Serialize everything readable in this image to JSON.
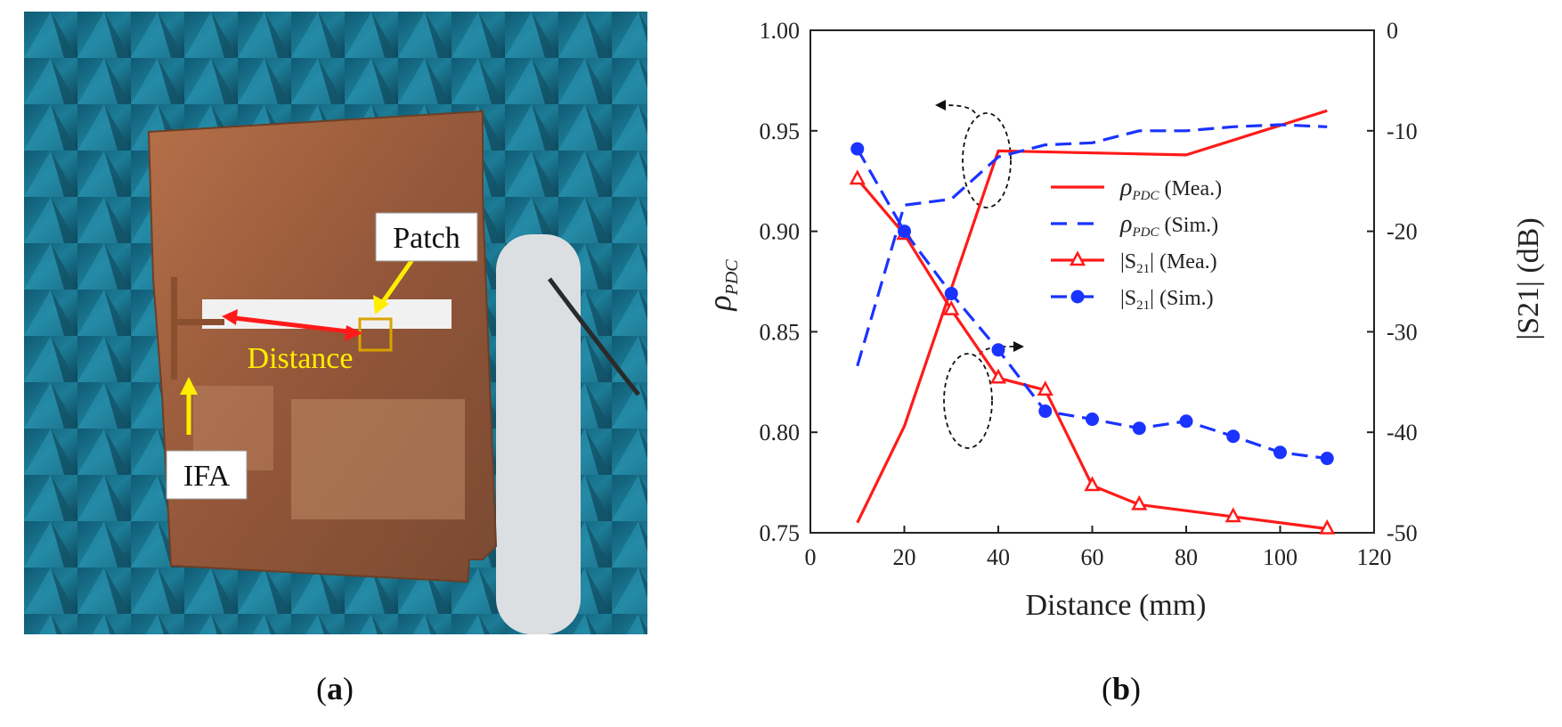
{
  "panel_a": {
    "labels": {
      "patch": "Patch",
      "distance": "Distance",
      "ifa": "IFA"
    },
    "caption_open": "(",
    "caption_letter": "a",
    "caption_close": ")"
  },
  "panel_b": {
    "caption_open": "(",
    "caption_letter": "b",
    "caption_close": ")"
  },
  "colors": {
    "red": "#ff1a1a",
    "blue": "#1a33ff",
    "axis": "#222222",
    "chamber": "#1d6f86",
    "copper": "#a4653f"
  },
  "chart_data": {
    "type": "line",
    "title": "",
    "xlabel": "Distance (mm)",
    "ylabel_left": "ρPDC",
    "ylabel_left_main": "ρ",
    "ylabel_left_sub": "PDC",
    "ylabel_right": "|S21| (dB)",
    "xlim": [
      0,
      120
    ],
    "ylim_left": [
      0.75,
      1.0
    ],
    "ylim_right": [
      -50,
      0
    ],
    "xticks": [
      "0",
      "20",
      "40",
      "60",
      "80",
      "100",
      "120"
    ],
    "yticks_left": [
      "0.75",
      "0.80",
      "0.85",
      "0.90",
      "0.95",
      "1.00"
    ],
    "yticks_right": [
      "-50",
      "-40",
      "-30",
      "-20",
      "-10",
      "0"
    ],
    "legend_position": "center-right",
    "series": [
      {
        "name": "ρPDC (Mea.)",
        "legend_main": "ρ",
        "legend_sub": "PDC",
        "legend_tail": " (Mea.)",
        "axis": "left",
        "color": "red",
        "style": "solid",
        "marker": "none",
        "x": [
          10,
          20,
          40,
          80,
          110
        ],
        "y": [
          0.755,
          0.803,
          0.94,
          0.938,
          0.96
        ]
      },
      {
        "name": "ρPDC (Sim.)",
        "legend_main": "ρ",
        "legend_sub": "PDC",
        "legend_tail": " (Sim.)",
        "axis": "left",
        "color": "blue",
        "style": "dashed",
        "marker": "none",
        "x": [
          10,
          20,
          30,
          40,
          50,
          60,
          70,
          80,
          90,
          100,
          110
        ],
        "y": [
          0.833,
          0.913,
          0.916,
          0.937,
          0.943,
          0.944,
          0.95,
          0.95,
          0.952,
          0.953,
          0.952
        ]
      },
      {
        "name": "|S21| (Mea.)",
        "legend_main": "|S",
        "legend_sub": "21",
        "legend_tail": "| (Mea.)",
        "axis": "right",
        "color": "red",
        "style": "solid",
        "marker": "triangle",
        "x": [
          10,
          20,
          30,
          40,
          50,
          60,
          70,
          90,
          110
        ],
        "y": [
          -14.8,
          -20.3,
          -27.8,
          -34.6,
          -35.8,
          -45.3,
          -47.2,
          -48.4,
          -49.6
        ]
      },
      {
        "name": "|S21| (Sim.)",
        "legend_main": "|S",
        "legend_sub": "21",
        "legend_tail": "| (Sim.)",
        "axis": "right",
        "color": "blue",
        "style": "dashed",
        "marker": "circle",
        "x": [
          10,
          20,
          30,
          40,
          50,
          60,
          70,
          80,
          90,
          100,
          110
        ],
        "y": [
          -11.8,
          -20.0,
          -26.2,
          -31.8,
          -37.9,
          -38.7,
          -39.6,
          -38.9,
          -40.4,
          -42.0,
          -42.6
        ]
      }
    ],
    "annotations": [
      {
        "kind": "ellipse-arrow",
        "target": "left-axis",
        "direction": "left"
      },
      {
        "kind": "ellipse-arrow",
        "target": "right-axis",
        "direction": "right"
      }
    ]
  }
}
